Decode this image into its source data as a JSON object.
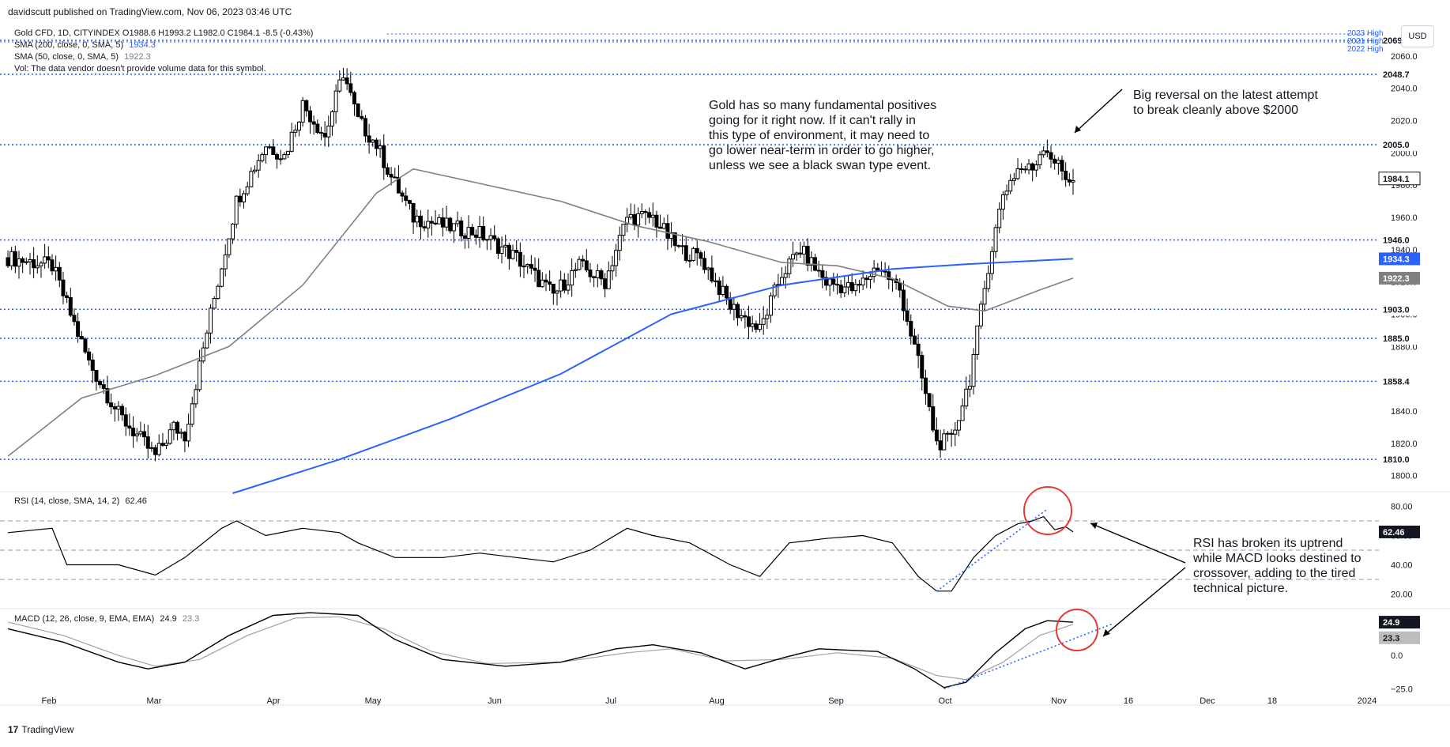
{
  "header": {
    "publisher": "davidscutt published on TradingView.com, Nov 06, 2023 03:46 UTC",
    "symbol_line": "Gold CFD, 1D, CITYINDEX  O1988.6  H1993.2  L1982.0  C1984.1  -8.5 (-0.43%)",
    "sma200_label": "SMA (200, close, 0, SMA, 5)",
    "sma200_value": "1934.3",
    "sma50_label": "SMA (50, close, 0, SMA, 5)",
    "sma50_value": "1922.3",
    "vol_line": "Vol: The data vendor doesn't provide volume data for this symbol.",
    "currency": "USD"
  },
  "rsi_legend": {
    "label": "RSI (14, close, SMA, 14, 2)",
    "value": "62.46"
  },
  "macd_legend": {
    "label": "MACD (12, 26, close, 9, EMA, EMA)",
    "value": "24.9",
    "signal": "23.3"
  },
  "annotations": {
    "gold_text": "Gold has so many fundamental positives\ngoing for it right now. If it can't rally in\nthis type of environment, it may need to\ngo lower near-term in order to go higher,\nunless we see a black swan type event.",
    "reversal_text": "Big reversal on the latest attempt\nto break cleanly above $2000",
    "rsi_text": "RSI has broken its uptrend\nwhile MACD looks destined to\ncrossover, adding to the tired\ntechnical picture."
  },
  "footer": {
    "brand": "TradingView"
  },
  "colors": {
    "up": "#ffffff",
    "down": "#000000",
    "sma200": "#2962ff",
    "sma50": "#808080",
    "level_line": "#2962ff",
    "circle": "#e53935",
    "rsi_line": "#000000",
    "macd_line": "#000000",
    "signal_line": "#a0a0a0"
  },
  "chart_data": [
    {
      "type": "candlestick",
      "title": "Gold CFD, 1D, CITYINDEX",
      "x_labels": [
        "Feb",
        "Mar",
        "Apr",
        "May",
        "Jun",
        "Jul",
        "Aug",
        "Sep",
        "Oct",
        "Nov",
        "16",
        "Dec",
        "18",
        "2024"
      ],
      "ylim": [
        1790,
        2080
      ],
      "y_ticks": [
        1800,
        1820,
        1840,
        1860,
        1880,
        1900,
        1920,
        1940,
        1960,
        1980,
        2000,
        2020,
        2040,
        2060
      ],
      "highs_labels": [
        "2023 High",
        "2021 High",
        "2022 High"
      ],
      "levels": [
        {
          "label": "2069.7",
          "value": 2069.7
        },
        {
          "label": "2048.7",
          "value": 2048.7
        },
        {
          "label": "2005.0",
          "value": 2005.0
        },
        {
          "label": "1946.0",
          "value": 1946.0
        },
        {
          "label": "1903.0",
          "value": 1903.0
        },
        {
          "label": "1885.0",
          "value": 1885.0
        },
        {
          "label": "1858.4",
          "value": 1858.4
        },
        {
          "label": "1810.0",
          "value": 1810.0
        }
      ],
      "price_tags": [
        {
          "label": "1984.1",
          "value": 1984.1,
          "style": "last"
        },
        {
          "label": "1934.3",
          "value": 1934.3,
          "style": "sma200"
        },
        {
          "label": "1922.3",
          "value": 1922.3,
          "style": "sma50"
        }
      ],
      "keypoints_close": [
        {
          "x": 0,
          "y": 1935
        },
        {
          "x": 12,
          "y": 1930
        },
        {
          "x": 22,
          "y": 1870
        },
        {
          "x": 30,
          "y": 1838
        },
        {
          "x": 40,
          "y": 1812
        },
        {
          "x": 45,
          "y": 1830
        },
        {
          "x": 48,
          "y": 1825
        },
        {
          "x": 55,
          "y": 1900
        },
        {
          "x": 62,
          "y": 1970
        },
        {
          "x": 70,
          "y": 2005
        },
        {
          "x": 75,
          "y": 1998
        },
        {
          "x": 80,
          "y": 2030
        },
        {
          "x": 86,
          "y": 2010
        },
        {
          "x": 91,
          "y": 2050
        },
        {
          "x": 95,
          "y": 2020
        },
        {
          "x": 100,
          "y": 2005
        },
        {
          "x": 104,
          "y": 1985
        },
        {
          "x": 110,
          "y": 1960
        },
        {
          "x": 118,
          "y": 1955
        },
        {
          "x": 128,
          "y": 1950
        },
        {
          "x": 138,
          "y": 1935
        },
        {
          "x": 148,
          "y": 1912
        },
        {
          "x": 155,
          "y": 1930
        },
        {
          "x": 162,
          "y": 1920
        },
        {
          "x": 168,
          "y": 1960
        },
        {
          "x": 175,
          "y": 1960
        },
        {
          "x": 182,
          "y": 1940
        },
        {
          "x": 188,
          "y": 1935
        },
        {
          "x": 196,
          "y": 1905
        },
        {
          "x": 204,
          "y": 1890
        },
        {
          "x": 210,
          "y": 1925
        },
        {
          "x": 215,
          "y": 1940
        },
        {
          "x": 222,
          "y": 1920
        },
        {
          "x": 230,
          "y": 1915
        },
        {
          "x": 236,
          "y": 1930
        },
        {
          "x": 242,
          "y": 1915
        },
        {
          "x": 247,
          "y": 1870
        },
        {
          "x": 252,
          "y": 1820
        },
        {
          "x": 256,
          "y": 1822
        },
        {
          "x": 261,
          "y": 1860
        },
        {
          "x": 266,
          "y": 1930
        },
        {
          "x": 270,
          "y": 1975
        },
        {
          "x": 274,
          "y": 1990
        },
        {
          "x": 278,
          "y": 1990
        },
        {
          "x": 281,
          "y": 2005
        },
        {
          "x": 284,
          "y": 1995
        },
        {
          "x": 287,
          "y": 1985
        },
        {
          "x": 289,
          "y": 1984.1
        }
      ],
      "sma50": [
        {
          "x": 0,
          "y": 1812
        },
        {
          "x": 20,
          "y": 1848
        },
        {
          "x": 40,
          "y": 1862
        },
        {
          "x": 60,
          "y": 1880
        },
        {
          "x": 80,
          "y": 1918
        },
        {
          "x": 100,
          "y": 1975
        },
        {
          "x": 110,
          "y": 1990
        },
        {
          "x": 130,
          "y": 1980
        },
        {
          "x": 150,
          "y": 1970
        },
        {
          "x": 170,
          "y": 1955
        },
        {
          "x": 190,
          "y": 1945
        },
        {
          "x": 210,
          "y": 1932
        },
        {
          "x": 225,
          "y": 1930
        },
        {
          "x": 240,
          "y": 1922
        },
        {
          "x": 255,
          "y": 1905
        },
        {
          "x": 265,
          "y": 1902
        },
        {
          "x": 280,
          "y": 1915
        },
        {
          "x": 289,
          "y": 1922.3
        }
      ],
      "sma200": [
        {
          "x": 61,
          "y": 1789
        },
        {
          "x": 90,
          "y": 1810
        },
        {
          "x": 120,
          "y": 1835
        },
        {
          "x": 150,
          "y": 1863
        },
        {
          "x": 180,
          "y": 1900
        },
        {
          "x": 210,
          "y": 1918
        },
        {
          "x": 240,
          "y": 1928
        },
        {
          "x": 260,
          "y": 1931
        },
        {
          "x": 289,
          "y": 1934.3
        }
      ]
    },
    {
      "type": "line",
      "title": "RSI (14, close, SMA, 14, 2)",
      "ylim": [
        10,
        90
      ],
      "y_ticks": [
        20,
        40,
        60,
        80
      ],
      "y_tick_labels": [
        "20.00",
        "40.00",
        "60.00",
        "80.00"
      ],
      "bands": [
        70,
        50,
        30
      ],
      "last_value": 62.46,
      "keypoints": [
        {
          "x": 0,
          "y": 62
        },
        {
          "x": 12,
          "y": 65
        },
        {
          "x": 16,
          "y": 40
        },
        {
          "x": 30,
          "y": 40
        },
        {
          "x": 40,
          "y": 33
        },
        {
          "x": 48,
          "y": 45
        },
        {
          "x": 58,
          "y": 65
        },
        {
          "x": 62,
          "y": 70
        },
        {
          "x": 70,
          "y": 60
        },
        {
          "x": 80,
          "y": 65
        },
        {
          "x": 90,
          "y": 62
        },
        {
          "x": 95,
          "y": 55
        },
        {
          "x": 105,
          "y": 45
        },
        {
          "x": 118,
          "y": 45
        },
        {
          "x": 128,
          "y": 48
        },
        {
          "x": 138,
          "y": 45
        },
        {
          "x": 148,
          "y": 42
        },
        {
          "x": 158,
          "y": 50
        },
        {
          "x": 168,
          "y": 65
        },
        {
          "x": 175,
          "y": 60
        },
        {
          "x": 185,
          "y": 55
        },
        {
          "x": 196,
          "y": 40
        },
        {
          "x": 204,
          "y": 32
        },
        {
          "x": 212,
          "y": 55
        },
        {
          "x": 222,
          "y": 58
        },
        {
          "x": 232,
          "y": 60
        },
        {
          "x": 240,
          "y": 55
        },
        {
          "x": 247,
          "y": 32
        },
        {
          "x": 252,
          "y": 22
        },
        {
          "x": 256,
          "y": 22
        },
        {
          "x": 262,
          "y": 45
        },
        {
          "x": 268,
          "y": 60
        },
        {
          "x": 274,
          "y": 68
        },
        {
          "x": 278,
          "y": 70
        },
        {
          "x": 281,
          "y": 73
        },
        {
          "x": 284,
          "y": 64
        },
        {
          "x": 287,
          "y": 66
        },
        {
          "x": 289,
          "y": 62.46
        }
      ]
    },
    {
      "type": "line",
      "title": "MACD (12, 26, close, 9, EMA, EMA)",
      "ylim": [
        -30,
        35
      ],
      "y_ticks": [
        0,
        -25
      ],
      "y_tick_labels": [
        "0.0",
        "−25.0"
      ],
      "macd_last": 24.9,
      "signal_last": 23.3,
      "macd": [
        {
          "x": 0,
          "y": 20
        },
        {
          "x": 15,
          "y": 10
        },
        {
          "x": 30,
          "y": -5
        },
        {
          "x": 38,
          "y": -10
        },
        {
          "x": 48,
          "y": -5
        },
        {
          "x": 60,
          "y": 15
        },
        {
          "x": 72,
          "y": 30
        },
        {
          "x": 82,
          "y": 32
        },
        {
          "x": 95,
          "y": 30
        },
        {
          "x": 105,
          "y": 12
        },
        {
          "x": 118,
          "y": -3
        },
        {
          "x": 135,
          "y": -8
        },
        {
          "x": 150,
          "y": -5
        },
        {
          "x": 165,
          "y": 5
        },
        {
          "x": 175,
          "y": 8
        },
        {
          "x": 188,
          "y": 2
        },
        {
          "x": 200,
          "y": -10
        },
        {
          "x": 210,
          "y": -2
        },
        {
          "x": 220,
          "y": 5
        },
        {
          "x": 236,
          "y": 3
        },
        {
          "x": 246,
          "y": -10
        },
        {
          "x": 254,
          "y": -24
        },
        {
          "x": 260,
          "y": -20
        },
        {
          "x": 268,
          "y": 2
        },
        {
          "x": 276,
          "y": 20
        },
        {
          "x": 282,
          "y": 26
        },
        {
          "x": 289,
          "y": 24.9
        }
      ],
      "signal": [
        {
          "x": 0,
          "y": 25
        },
        {
          "x": 15,
          "y": 15
        },
        {
          "x": 30,
          "y": 0
        },
        {
          "x": 40,
          "y": -8
        },
        {
          "x": 52,
          "y": -3
        },
        {
          "x": 65,
          "y": 15
        },
        {
          "x": 78,
          "y": 28
        },
        {
          "x": 90,
          "y": 29
        },
        {
          "x": 102,
          "y": 20
        },
        {
          "x": 115,
          "y": 3
        },
        {
          "x": 130,
          "y": -6
        },
        {
          "x": 150,
          "y": -5
        },
        {
          "x": 168,
          "y": 2
        },
        {
          "x": 180,
          "y": 5
        },
        {
          "x": 195,
          "y": -4
        },
        {
          "x": 210,
          "y": -3
        },
        {
          "x": 225,
          "y": 2
        },
        {
          "x": 240,
          "y": -2
        },
        {
          "x": 252,
          "y": -15
        },
        {
          "x": 260,
          "y": -18
        },
        {
          "x": 270,
          "y": -5
        },
        {
          "x": 280,
          "y": 15
        },
        {
          "x": 289,
          "y": 23.3
        }
      ]
    }
  ]
}
